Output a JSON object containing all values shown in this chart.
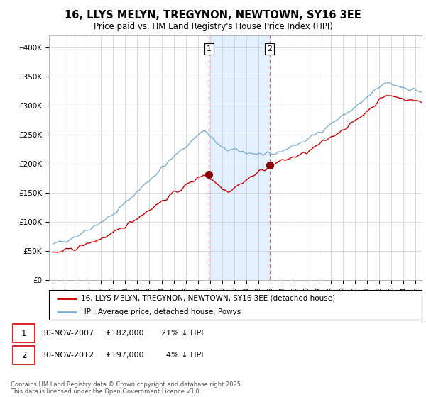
{
  "title": "16, LLYS MELYN, TREGYNON, NEWTOWN, SY16 3EE",
  "subtitle": "Price paid vs. HM Land Registry's House Price Index (HPI)",
  "ylim": [
    0,
    420000
  ],
  "yticks": [
    0,
    50000,
    100000,
    150000,
    200000,
    250000,
    300000,
    350000,
    400000
  ],
  "ytick_labels": [
    "£0",
    "£50K",
    "£100K",
    "£150K",
    "£200K",
    "£250K",
    "£300K",
    "£350K",
    "£400K"
  ],
  "red_color": "#cc0000",
  "blue_color": "#7bafd4",
  "shade_color": "#ddeeff",
  "vline_color": "#cc6666",
  "purchase1_date": 2007.92,
  "purchase1_price": 182000,
  "purchase2_date": 2012.92,
  "purchase2_price": 197000,
  "legend1": "16, LLYS MELYN, TREGYNON, NEWTOWN, SY16 3EE (detached house)",
  "legend2": "HPI: Average price, detached house, Powys",
  "ann1_text": "30-NOV-2007     £182,000       21% ↓ HPI",
  "ann2_text": "30-NOV-2012     £197,000         4% ↓ HPI",
  "footer": "Contains HM Land Registry data © Crown copyright and database right 2025.\nThis data is licensed under the Open Government Licence v3.0.",
  "title_fontsize": 10.5,
  "subtitle_fontsize": 8.5,
  "axis_fontsize": 7.5,
  "grid_color": "#cccccc",
  "xstart": 1995,
  "xend": 2025.5
}
